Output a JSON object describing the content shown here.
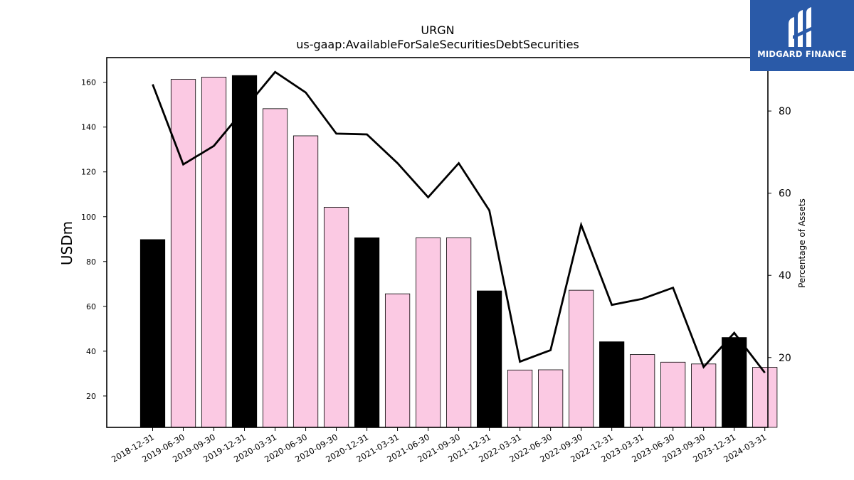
{
  "logo": {
    "text": "MIDGARD FINANCE"
  },
  "chart_data": {
    "type": "bar",
    "title": "URGN",
    "subtitle": "us-gaap:AvailableForSaleSecuritiesDebtSecurities",
    "ylabel": "USDm",
    "y2label": "Percentage of Assets",
    "ylim": [
      6,
      171
    ],
    "y2lim": [
      3,
      93
    ],
    "yticks": [
      20,
      40,
      60,
      80,
      100,
      120,
      140,
      160
    ],
    "y2ticks": [
      20,
      40,
      60,
      80
    ],
    "categories": [
      "2018-12-31",
      "2019-06-30",
      "2019-09-30",
      "2019-12-31",
      "2020-03-31",
      "2020-06-30",
      "2020-09-30",
      "2020-12-31",
      "2021-03-31",
      "2021-06-30",
      "2021-09-30",
      "2021-12-31",
      "2022-03-31",
      "2022-06-30",
      "2022-09-30",
      "2022-12-31",
      "2023-03-31",
      "2023-06-30",
      "2023-09-30",
      "2023-12-31",
      "2024-03-31"
    ],
    "series": [
      {
        "type": "bar",
        "values": [
          89.8,
          161.3,
          162.3,
          163.0,
          148.2,
          136.1,
          104.2,
          90.6,
          65.6,
          90.6,
          90.6,
          66.9,
          31.6,
          31.7,
          67.2,
          44.2,
          38.5,
          35.1,
          34.3,
          46.1,
          32.8
        ]
      },
      {
        "type": "line",
        "axis": "right",
        "values": [
          86.5,
          67.0,
          71.5,
          80.5,
          89.5,
          84.5,
          74.5,
          74.3,
          67.3,
          59.0,
          67.3,
          55.8,
          19.0,
          21.8,
          52.3,
          32.8,
          34.3,
          37.0,
          17.7,
          26.0,
          16.3
        ]
      }
    ],
    "colors": {
      "annual_bar": "#000000",
      "quarter_bar": "#fbc9e3",
      "line": "#000000",
      "logo_bg": "#2a5aa8"
    },
    "annual_categories": [
      "2018-12-31",
      "2019-12-31",
      "2020-12-31",
      "2021-12-31",
      "2022-12-31",
      "2023-12-31"
    ],
    "grid": false,
    "legend": "none"
  }
}
